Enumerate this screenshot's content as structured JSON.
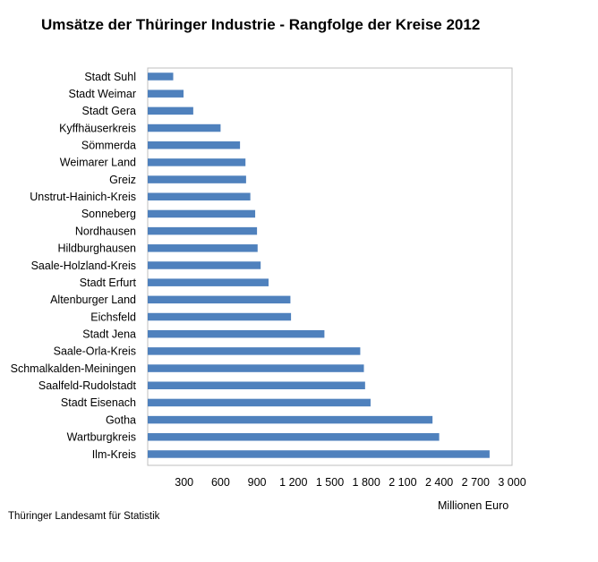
{
  "chart_data": {
    "type": "bar",
    "orientation": "horizontal",
    "title": "Umsätze der Thüringer Industrie - Rangfolge der Kreise 2012",
    "xlabel": "Millionen Euro",
    "ylabel": "",
    "xlim": [
      0,
      3000
    ],
    "x_ticks": [
      300,
      600,
      900,
      1200,
      1500,
      1800,
      2100,
      2400,
      2700,
      3000
    ],
    "x_tick_labels": [
      "300",
      "600",
      "900",
      "1 200",
      "1 500",
      "1 800",
      "2 100",
      "2 400",
      "2 700",
      "3 000"
    ],
    "grid": false,
    "bar_color": "#4F81BD",
    "categories": [
      "Stadt Suhl",
      "Stadt Weimar",
      "Stadt Gera",
      "Kyffhäuserkreis",
      "Sömmerda",
      "Weimarer Land",
      "Greiz",
      "Unstrut-Hainich-Kreis",
      "Sonneberg",
      "Nordhausen",
      "Hildburghausen",
      "Saale-Holzland-Kreis",
      "Stadt Erfurt",
      "Altenburger Land",
      "Eichsfeld",
      "Stadt Jena",
      "Saale-Orla-Kreis",
      "Schmalkalden-Meiningen",
      "Saalfeld-Rudolstadt",
      "Stadt Eisenach",
      "Gotha",
      "Wartburgkreis",
      "Ilm-Kreis"
    ],
    "values": [
      210,
      295,
      375,
      600,
      760,
      805,
      810,
      845,
      885,
      900,
      905,
      930,
      995,
      1175,
      1180,
      1455,
      1750,
      1780,
      1790,
      1835,
      2345,
      2400,
      2815
    ]
  },
  "source": "Thüringer Landesamt für Statistik"
}
